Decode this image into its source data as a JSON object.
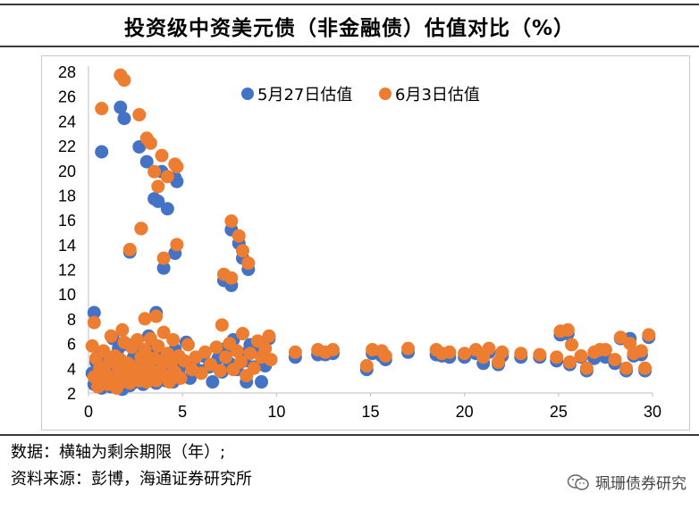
{
  "title": "投资级中资美元债（非金融债）估值对比（%）",
  "footnotes": {
    "line1": "数据：横轴为剩余期限（年）;",
    "line2": "资料来源：彭博，海通证券研究所"
  },
  "watermark": "珮珊债券研究",
  "colors": {
    "series_may27": "#4472C4",
    "series_jun3": "#ED7D31",
    "axis": "#bfbfbf"
  },
  "chart_data": {
    "type": "scatter",
    "title": "投资级中资美元债（非金融债）估值对比（%）",
    "xlabel": "",
    "ylabel": "",
    "xlim": [
      0,
      30
    ],
    "ylim": [
      2,
      28
    ],
    "xticks": [
      0,
      5,
      10,
      15,
      20,
      25,
      30
    ],
    "yticks": [
      2,
      4,
      6,
      8,
      10,
      12,
      14,
      16,
      18,
      20,
      22,
      24,
      26,
      28
    ],
    "grid": false,
    "legend_position": "top-left",
    "series": [
      {
        "name": "5月27日估值",
        "points": [
          [
            0.3,
            8.5
          ],
          [
            0.7,
            21.5
          ],
          [
            1.7,
            25.1
          ],
          [
            1.9,
            24.2
          ],
          [
            2.2,
            13.4
          ],
          [
            2.7,
            21.9
          ],
          [
            2.8,
            15.3
          ],
          [
            3.1,
            20.7
          ],
          [
            3.5,
            17.7
          ],
          [
            3.7,
            17.5
          ],
          [
            3.9,
            19.9
          ],
          [
            4.0,
            12.1
          ],
          [
            4.2,
            16.9
          ],
          [
            4.6,
            19.4
          ],
          [
            4.7,
            19.1
          ],
          [
            4.6,
            13.3
          ],
          [
            7.2,
            11.1
          ],
          [
            7.6,
            10.7
          ],
          [
            7.6,
            15.2
          ],
          [
            8.0,
            14.1
          ],
          [
            8.2,
            12.9
          ],
          [
            8.5,
            12.0
          ],
          [
            3.6,
            8.5
          ],
          [
            3.2,
            6.6
          ],
          [
            0.2,
            3.6
          ],
          [
            0.3,
            2.7
          ],
          [
            0.4,
            4.5
          ],
          [
            0.5,
            3.1
          ],
          [
            0.6,
            5.2
          ],
          [
            0.7,
            2.4
          ],
          [
            0.8,
            3.9
          ],
          [
            0.9,
            2.9
          ],
          [
            1.0,
            4.8
          ],
          [
            1.1,
            3.3
          ],
          [
            1.2,
            2.5
          ],
          [
            1.3,
            6.4
          ],
          [
            1.4,
            4.1
          ],
          [
            1.5,
            2.8
          ],
          [
            1.6,
            5.6
          ],
          [
            1.7,
            3.5
          ],
          [
            1.8,
            2.3
          ],
          [
            1.9,
            4.4
          ],
          [
            2.0,
            3.0
          ],
          [
            2.1,
            5.9
          ],
          [
            2.2,
            2.6
          ],
          [
            2.3,
            3.8
          ],
          [
            2.4,
            4.9
          ],
          [
            2.5,
            2.9
          ],
          [
            2.6,
            3.4
          ],
          [
            2.7,
            5.3
          ],
          [
            2.8,
            4.2
          ],
          [
            2.9,
            2.7
          ],
          [
            3.0,
            3.6
          ],
          [
            3.1,
            4.7
          ],
          [
            3.3,
            3.1
          ],
          [
            3.4,
            5.8
          ],
          [
            3.5,
            3.9
          ],
          [
            3.6,
            2.8
          ],
          [
            3.8,
            4.5
          ],
          [
            3.9,
            3.3
          ],
          [
            4.0,
            5.1
          ],
          [
            4.1,
            3.0
          ],
          [
            4.3,
            4.0
          ],
          [
            4.5,
            2.9
          ],
          [
            4.6,
            5.5
          ],
          [
            4.8,
            3.6
          ],
          [
            5.0,
            4.3
          ],
          [
            5.2,
            6.1
          ],
          [
            5.4,
            3.2
          ],
          [
            5.6,
            4.6
          ],
          [
            5.9,
            3.8
          ],
          [
            6.1,
            5.0
          ],
          [
            6.4,
            4.1
          ],
          [
            6.6,
            2.9
          ],
          [
            6.9,
            4.8
          ],
          [
            7.1,
            3.7
          ],
          [
            7.3,
            5.6
          ],
          [
            7.5,
            4.4
          ],
          [
            7.7,
            6.3
          ],
          [
            7.9,
            3.9
          ],
          [
            8.1,
            5.2
          ],
          [
            8.3,
            4.6
          ],
          [
            8.4,
            2.9
          ],
          [
            8.6,
            5.9
          ],
          [
            8.8,
            4.1
          ],
          [
            9.0,
            5.4
          ],
          [
            9.2,
            2.9
          ],
          [
            9.4,
            4.2
          ],
          [
            9.6,
            6.4
          ],
          [
            11.0,
            4.9
          ],
          [
            12.2,
            5.1
          ],
          [
            12.6,
            5.1
          ],
          [
            13.0,
            5.2
          ],
          [
            14.8,
            3.9
          ],
          [
            15.1,
            5.2
          ],
          [
            15.6,
            5.0
          ],
          [
            15.8,
            4.7
          ],
          [
            17.0,
            5.3
          ],
          [
            18.5,
            5.1
          ],
          [
            18.8,
            5.0
          ],
          [
            19.2,
            4.9
          ],
          [
            20.0,
            4.9
          ],
          [
            20.6,
            5.2
          ],
          [
            21.0,
            4.4
          ],
          [
            21.3,
            5.3
          ],
          [
            21.8,
            4.3
          ],
          [
            22.0,
            5.0
          ],
          [
            23.0,
            4.9
          ],
          [
            24.0,
            4.9
          ],
          [
            24.9,
            4.6
          ],
          [
            25.1,
            6.7
          ],
          [
            25.5,
            6.8
          ],
          [
            25.6,
            4.3
          ],
          [
            26.2,
            4.9
          ],
          [
            26.5,
            3.8
          ],
          [
            26.9,
            4.8
          ],
          [
            27.5,
            4.9
          ],
          [
            28.0,
            4.4
          ],
          [
            28.3,
            6.4
          ],
          [
            28.6,
            3.8
          ],
          [
            28.8,
            6.4
          ],
          [
            29.0,
            5.0
          ],
          [
            29.4,
            5.1
          ],
          [
            29.6,
            3.8
          ],
          [
            29.8,
            6.5
          ]
        ]
      },
      {
        "name": "6月3日估值",
        "points": [
          [
            0.3,
            7.7
          ],
          [
            0.7,
            25.0
          ],
          [
            1.7,
            27.7
          ],
          [
            1.9,
            27.3
          ],
          [
            2.2,
            13.6
          ],
          [
            2.7,
            24.5
          ],
          [
            2.8,
            15.3
          ],
          [
            3.1,
            22.6
          ],
          [
            3.3,
            22.2
          ],
          [
            3.5,
            19.9
          ],
          [
            3.7,
            18.7
          ],
          [
            3.9,
            21.2
          ],
          [
            4.0,
            12.9
          ],
          [
            4.2,
            19.5
          ],
          [
            4.6,
            20.5
          ],
          [
            4.7,
            20.3
          ],
          [
            4.7,
            14.0
          ],
          [
            7.2,
            11.6
          ],
          [
            7.6,
            11.3
          ],
          [
            7.6,
            15.9
          ],
          [
            8.0,
            14.7
          ],
          [
            8.2,
            13.5
          ],
          [
            8.5,
            12.5
          ],
          [
            3.0,
            8.0
          ],
          [
            3.6,
            8.2
          ],
          [
            1.8,
            7.1
          ],
          [
            0.2,
            5.8
          ],
          [
            0.3,
            3.3
          ],
          [
            0.4,
            4.8
          ],
          [
            0.5,
            2.5
          ],
          [
            0.6,
            4.0
          ],
          [
            0.7,
            3.0
          ],
          [
            0.8,
            5.4
          ],
          [
            0.9,
            3.6
          ],
          [
            1.0,
            2.7
          ],
          [
            1.1,
            4.5
          ],
          [
            1.2,
            6.6
          ],
          [
            1.3,
            3.2
          ],
          [
            1.4,
            5.0
          ],
          [
            1.5,
            2.4
          ],
          [
            1.6,
            3.9
          ],
          [
            1.7,
            4.7
          ],
          [
            1.8,
            2.9
          ],
          [
            1.9,
            6.1
          ],
          [
            2.0,
            3.5
          ],
          [
            2.1,
            4.4
          ],
          [
            2.2,
            2.8
          ],
          [
            2.3,
            5.7
          ],
          [
            2.4,
            3.4
          ],
          [
            2.5,
            4.1
          ],
          [
            2.6,
            6.3
          ],
          [
            2.7,
            3.0
          ],
          [
            2.8,
            4.9
          ],
          [
            2.9,
            3.7
          ],
          [
            3.0,
            5.5
          ],
          [
            3.1,
            2.9
          ],
          [
            3.2,
            4.3
          ],
          [
            3.3,
            6.4
          ],
          [
            3.4,
            3.5
          ],
          [
            3.5,
            4.8
          ],
          [
            3.6,
            3.0
          ],
          [
            3.7,
            5.8
          ],
          [
            3.8,
            3.8
          ],
          [
            3.9,
            4.6
          ],
          [
            4.0,
            6.9
          ],
          [
            4.1,
            3.4
          ],
          [
            4.2,
            5.2
          ],
          [
            4.3,
            2.9
          ],
          [
            4.4,
            4.4
          ],
          [
            4.5,
            6.3
          ],
          [
            4.6,
            3.7
          ],
          [
            4.8,
            5.0
          ],
          [
            4.9,
            3.2
          ],
          [
            5.1,
            4.6
          ],
          [
            5.3,
            5.9
          ],
          [
            5.5,
            3.9
          ],
          [
            5.7,
            4.9
          ],
          [
            6.0,
            3.6
          ],
          [
            6.2,
            5.3
          ],
          [
            6.5,
            4.3
          ],
          [
            6.8,
            5.7
          ],
          [
            7.0,
            3.8
          ],
          [
            7.1,
            7.5
          ],
          [
            7.3,
            4.9
          ],
          [
            7.5,
            6.0
          ],
          [
            7.7,
            3.9
          ],
          [
            7.9,
            5.4
          ],
          [
            8.1,
            4.5
          ],
          [
            8.2,
            6.8
          ],
          [
            8.4,
            3.4
          ],
          [
            8.6,
            5.2
          ],
          [
            8.8,
            4.0
          ],
          [
            9.0,
            6.2
          ],
          [
            9.2,
            4.9
          ],
          [
            9.4,
            5.6
          ],
          [
            9.6,
            6.6
          ],
          [
            9.7,
            4.7
          ],
          [
            11.0,
            5.3
          ],
          [
            12.2,
            5.5
          ],
          [
            12.6,
            5.3
          ],
          [
            13.0,
            5.5
          ],
          [
            14.8,
            4.2
          ],
          [
            15.1,
            5.5
          ],
          [
            15.6,
            5.4
          ],
          [
            15.8,
            5.0
          ],
          [
            17.0,
            5.6
          ],
          [
            18.5,
            5.5
          ],
          [
            18.8,
            5.2
          ],
          [
            19.2,
            5.3
          ],
          [
            20.0,
            5.2
          ],
          [
            20.6,
            5.5
          ],
          [
            21.0,
            4.9
          ],
          [
            21.3,
            5.6
          ],
          [
            21.8,
            4.5
          ],
          [
            22.0,
            5.3
          ],
          [
            23.0,
            5.2
          ],
          [
            24.0,
            5.1
          ],
          [
            24.9,
            4.9
          ],
          [
            25.1,
            7.0
          ],
          [
            25.5,
            7.1
          ],
          [
            25.6,
            4.5
          ],
          [
            25.7,
            5.9
          ],
          [
            26.2,
            5.0
          ],
          [
            26.5,
            4.0
          ],
          [
            26.9,
            5.3
          ],
          [
            27.2,
            5.5
          ],
          [
            27.5,
            5.5
          ],
          [
            28.0,
            4.7
          ],
          [
            28.3,
            6.5
          ],
          [
            28.6,
            4.0
          ],
          [
            28.8,
            6.0
          ],
          [
            29.0,
            5.2
          ],
          [
            29.4,
            5.4
          ],
          [
            29.6,
            4.0
          ],
          [
            29.8,
            6.7
          ]
        ]
      }
    ]
  }
}
